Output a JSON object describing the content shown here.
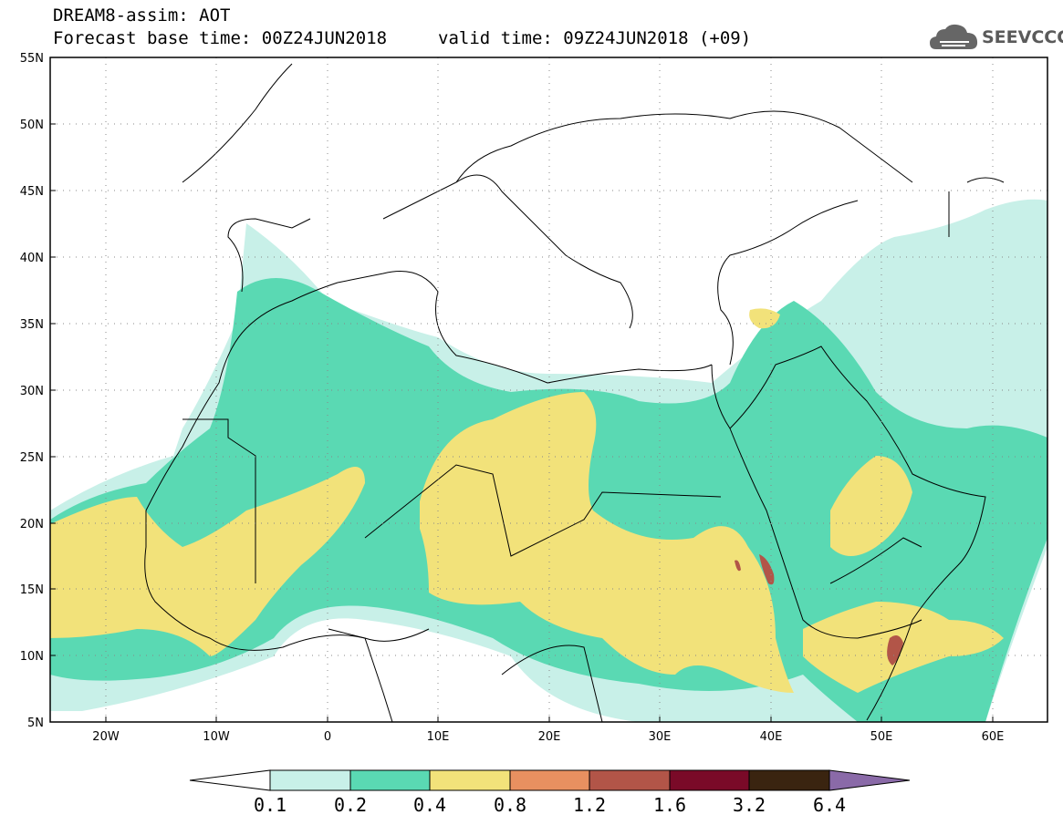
{
  "header": {
    "title_line1": "DREAM8-assim: AOT",
    "base_time": "Forecast base time: 00Z24JUN2018",
    "valid_time": "valid time: 09Z24JUN2018 (+09)",
    "logo_text": "SEEVCCC",
    "logo_icon": "cloud-icon"
  },
  "map": {
    "lon_labels": [
      "20W",
      "10W",
      "0",
      "10E",
      "20E",
      "30E",
      "40E",
      "50E",
      "60E"
    ],
    "lat_labels": [
      "55N",
      "50N",
      "45N",
      "40N",
      "35N",
      "30N",
      "25N",
      "20N",
      "15N",
      "10N",
      "5N"
    ],
    "lon_range": [
      -25,
      65
    ],
    "lat_range": [
      5,
      55
    ],
    "gridlines": "dotted"
  },
  "colorbar": {
    "labels": [
      "0.1",
      "0.2",
      "0.4",
      "0.8",
      "1.2",
      "1.6",
      "3.2",
      "6.4"
    ],
    "colors": {
      "under": "#ffffff",
      "c1": "#c8f0e8",
      "c2": "#5ad9b3",
      "c3": "#f2e27a",
      "c4": "#e89060",
      "c5": "#b25548",
      "c6": "#7a0a28",
      "c7": "#3a2410",
      "over": "#8a6aa8"
    }
  }
}
